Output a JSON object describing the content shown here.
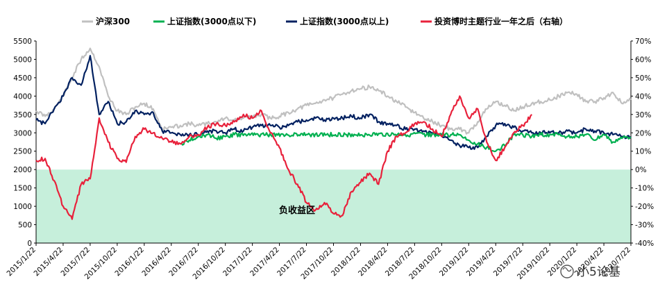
{
  "chart_data": {
    "type": "line",
    "title": "",
    "negative_zone_label": "负收益区",
    "negative_zone_color": "#c6efdb",
    "watermark": "小5论基",
    "left_axis": {
      "min": 0,
      "max": 5500,
      "step": 500,
      "ticks": [
        "0",
        "500",
        "1000",
        "1500",
        "2000",
        "2500",
        "3000",
        "3500",
        "4000",
        "4500",
        "5000",
        "5500"
      ]
    },
    "right_axis": {
      "min": -40,
      "max": 70,
      "step": 10,
      "ticks": [
        "-40%",
        "-30%",
        "-20%",
        "-10%",
        "0%",
        "10%",
        "20%",
        "30%",
        "40%",
        "50%",
        "60%",
        "70%"
      ]
    },
    "x_ticks": [
      "2015/1/22",
      "2015/4/22",
      "2015/7/22",
      "2015/10/22",
      "2016/1/22",
      "2016/4/22",
      "2016/7/22",
      "2016/10/22",
      "2017/1/22",
      "2017/4/22",
      "2017/7/22",
      "2017/10/22",
      "2018/1/22",
      "2018/4/22",
      "2018/7/22",
      "2018/10/22",
      "2019/1/22",
      "2019/4/22",
      "2019/7/22",
      "2019/10/22",
      "2020/1/22",
      "2020/4/22",
      "2020/7/22"
    ],
    "x_range": [
      0,
      66
    ],
    "series": [
      {
        "name": "沪深300",
        "color": "#c0c0c0",
        "axis": "left",
        "x": [
          0,
          1,
          2,
          3,
          4,
          5,
          6,
          7,
          8,
          9,
          10,
          11,
          12,
          13,
          14,
          15,
          16,
          17,
          18,
          19,
          20,
          21,
          22,
          23,
          24,
          25,
          26,
          27,
          28,
          29,
          30,
          31,
          32,
          33,
          34,
          35,
          36,
          37,
          38,
          39,
          40,
          41,
          42,
          43,
          44,
          45,
          46,
          47,
          48,
          49,
          50,
          51,
          52,
          53,
          54,
          55,
          56,
          57,
          58,
          59,
          60,
          61,
          62,
          63,
          64,
          65,
          66
        ],
        "values": [
          3600,
          3450,
          3650,
          4000,
          4500,
          5000,
          5300,
          4800,
          4000,
          3600,
          3500,
          3700,
          3800,
          3650,
          3100,
          3150,
          3200,
          3250,
          3200,
          3250,
          3300,
          3400,
          3350,
          3400,
          3450,
          3500,
          3400,
          3450,
          3550,
          3650,
          3750,
          3800,
          3900,
          3950,
          4050,
          4150,
          4200,
          4250,
          4150,
          4000,
          3850,
          3700,
          3550,
          3400,
          3300,
          3200,
          3100,
          3100,
          3000,
          3300,
          3650,
          3850,
          3750,
          3600,
          3700,
          3800,
          3850,
          3900,
          4000,
          4100,
          4050,
          3850,
          3850,
          3950,
          4100,
          3800,
          3900
        ]
      },
      {
        "name": "上证指数(3000点以下)",
        "color": "#00b050",
        "axis": "left",
        "x": [
          16,
          17,
          18,
          19,
          20,
          21,
          22,
          47,
          48,
          49,
          50,
          51,
          52,
          53,
          54,
          55,
          56,
          57,
          58,
          59,
          60,
          61,
          62,
          63,
          64,
          65,
          66
        ],
        "values": [
          2700,
          2800,
          2900,
          2950,
          2850,
          2900,
          2950,
          2950,
          2800,
          2700,
          2600,
          2500,
          2650,
          2950,
          2950,
          2900,
          2950,
          2950,
          2950,
          2900,
          2900,
          2950,
          2800,
          2950,
          2750,
          2850,
          2880
        ]
      },
      {
        "name": "上证指数(3000点以上)",
        "color": "#002060",
        "axis": "left",
        "x": [
          0,
          1,
          2,
          3,
          4,
          5,
          6,
          7,
          8,
          9,
          10,
          11,
          12,
          13,
          14,
          15,
          16,
          17,
          18,
          19,
          20,
          21,
          22,
          23,
          24,
          25,
          26,
          27,
          28,
          29,
          30,
          31,
          32,
          33,
          34,
          35,
          36,
          37,
          38,
          39,
          40,
          41,
          42,
          43,
          44,
          45,
          46,
          47,
          48,
          49,
          50,
          51,
          52,
          53,
          54,
          55,
          56,
          57,
          58,
          59,
          60,
          61,
          62,
          63,
          64,
          65,
          66
        ],
        "values": [
          3350,
          3250,
          3650,
          4000,
          4500,
          4300,
          5100,
          3500,
          3850,
          3250,
          3300,
          3600,
          3500,
          3550,
          3050,
          3000,
          2950,
          2950,
          2950,
          3050,
          3050,
          3000,
          3100,
          3050,
          3150,
          3200,
          3200,
          3150,
          3200,
          3300,
          3350,
          3400,
          3350,
          3400,
          3400,
          3450,
          3400,
          3500,
          3300,
          3250,
          3200,
          3100,
          3100,
          3050,
          3000,
          2950,
          2800,
          2650,
          2600,
          2600,
          2900,
          3200,
          3250,
          3150,
          3050,
          3000,
          3000,
          3000,
          3000,
          3050,
          3000,
          3100,
          3050,
          3000,
          2950,
          2900,
          2900
        ]
      },
      {
        "name": "投资博时主题行业一年之后（右轴）",
        "color": "#e8213b",
        "axis": "right",
        "x": [
          0,
          1,
          2,
          3,
          4,
          5,
          6,
          7,
          8,
          9,
          10,
          11,
          12,
          13,
          14,
          15,
          16,
          17,
          18,
          19,
          20,
          21,
          22,
          23,
          24,
          25,
          26,
          27,
          28,
          29,
          30,
          31,
          32,
          33,
          34,
          35,
          36,
          37,
          38,
          39,
          40,
          41,
          42,
          43,
          44,
          45,
          46,
          47,
          48,
          49,
          50,
          51,
          52,
          53,
          54,
          55
        ],
        "values": [
          5,
          6,
          -6,
          -20,
          -27,
          -8,
          -5,
          28,
          15,
          6,
          4,
          18,
          22,
          20,
          17,
          15,
          14,
          18,
          19,
          23,
          25,
          24,
          26,
          30,
          28,
          32,
          20,
          12,
          0,
          -8,
          -18,
          -22,
          -18,
          -24,
          -25,
          -12,
          -7,
          -2,
          -8,
          10,
          18,
          20,
          25,
          26,
          22,
          18,
          30,
          40,
          28,
          33,
          15,
          5,
          12,
          20,
          24,
          30
        ]
      }
    ]
  }
}
